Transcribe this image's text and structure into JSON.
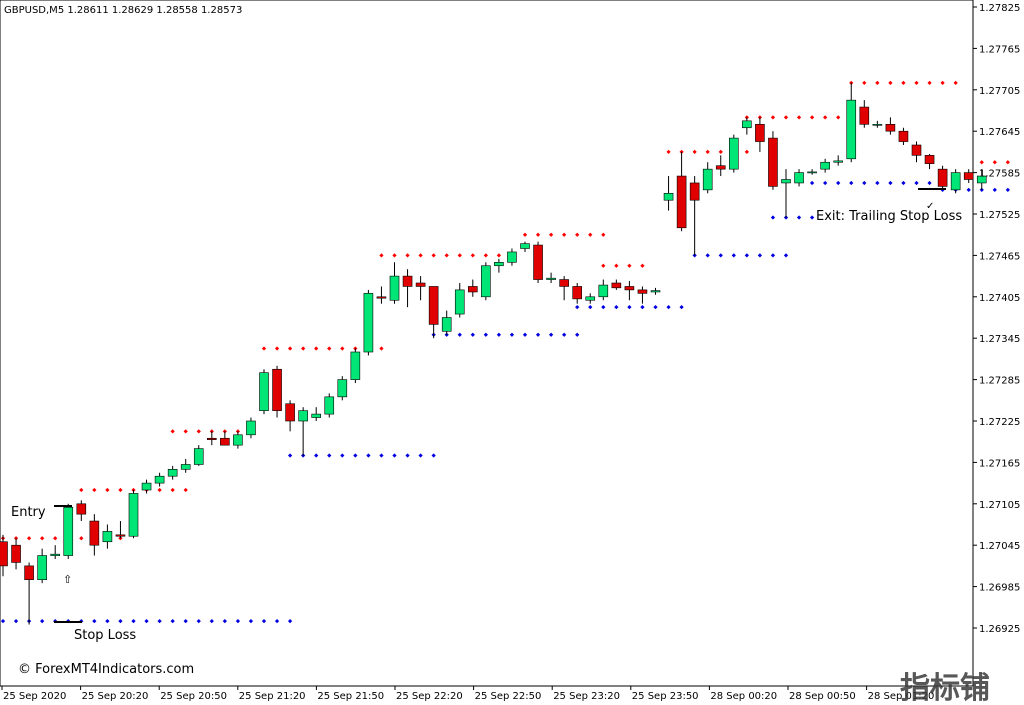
{
  "chart_data": {
    "type": "candlestick",
    "symbol_header": "GBPUSD,M5  1.28611 1.28629 1.28558 1.28573",
    "y_ticks": [
      "1.27825",
      "1.27765",
      "1.27705",
      "1.27645",
      "1.27585",
      "1.27525",
      "1.27465",
      "1.27405",
      "1.27345",
      "1.27285",
      "1.27225",
      "1.27165",
      "1.27105",
      "1.27045",
      "1.26985",
      "1.26925"
    ],
    "ylim": [
      1.2688,
      1.2785
    ],
    "x_ticks": [
      "25 Sep 2020",
      "25 Sep 20:20",
      "25 Sep 20:50",
      "25 Sep 21:20",
      "25 Sep 21:50",
      "25 Sep 22:20",
      "25 Sep 22:50",
      "25 Sep 23:20",
      "25 Sep 23:50",
      "28 Sep 00:20",
      "28 Sep 00:50",
      "28 Sep 01:20"
    ],
    "annotations": {
      "entry": "Entry",
      "stop_loss": "Stop Loss",
      "exit": "Exit: Trailing Stop Loss",
      "copyright": "© ForexMT4Indicators.com"
    },
    "watermark": "指标铺",
    "colors": {
      "bull": "#00e676",
      "bear": "#e00000",
      "upper_dots": "#ff0000",
      "lower_dots": "#0000e0",
      "wick": "#000000"
    },
    "candles": [
      {
        "o": 1.2705,
        "h": 1.2706,
        "l": 1.27,
        "c": 1.27015
      },
      {
        "o": 1.27045,
        "h": 1.27055,
        "l": 1.2701,
        "c": 1.2702
      },
      {
        "o": 1.27015,
        "h": 1.2702,
        "l": 1.2693,
        "c": 1.26995
      },
      {
        "o": 1.26995,
        "h": 1.2704,
        "l": 1.2699,
        "c": 1.2703
      },
      {
        "o": 1.2703,
        "h": 1.27045,
        "l": 1.27025,
        "c": 1.27032
      },
      {
        "o": 1.2703,
        "h": 1.27105,
        "l": 1.27025,
        "c": 1.271
      },
      {
        "o": 1.27105,
        "h": 1.2711,
        "l": 1.2708,
        "c": 1.2709
      },
      {
        "o": 1.2708,
        "h": 1.2709,
        "l": 1.2703,
        "c": 1.27045
      },
      {
        "o": 1.2705,
        "h": 1.27075,
        "l": 1.2704,
        "c": 1.27065
      },
      {
        "o": 1.2706,
        "h": 1.2708,
        "l": 1.27055,
        "c": 1.27058
      },
      {
        "o": 1.27058,
        "h": 1.27125,
        "l": 1.27055,
        "c": 1.2712
      },
      {
        "o": 1.27125,
        "h": 1.2714,
        "l": 1.2712,
        "c": 1.27135
      },
      {
        "o": 1.27135,
        "h": 1.2715,
        "l": 1.2713,
        "c": 1.27145
      },
      {
        "o": 1.27145,
        "h": 1.2716,
        "l": 1.2714,
        "c": 1.27155
      },
      {
        "o": 1.27155,
        "h": 1.2717,
        "l": 1.2715,
        "c": 1.27162
      },
      {
        "o": 1.27162,
        "h": 1.2719,
        "l": 1.2716,
        "c": 1.27185
      },
      {
        "o": 1.272,
        "h": 1.2721,
        "l": 1.2719,
        "c": 1.27198
      },
      {
        "o": 1.272,
        "h": 1.2721,
        "l": 1.2719,
        "c": 1.2719
      },
      {
        "o": 1.2719,
        "h": 1.2721,
        "l": 1.27185,
        "c": 1.27205
      },
      {
        "o": 1.27205,
        "h": 1.2723,
        "l": 1.272,
        "c": 1.27225
      },
      {
        "o": 1.2724,
        "h": 1.273,
        "l": 1.27235,
        "c": 1.27295
      },
      {
        "o": 1.273,
        "h": 1.27305,
        "l": 1.2723,
        "c": 1.2724
      },
      {
        "o": 1.2725,
        "h": 1.27255,
        "l": 1.2721,
        "c": 1.27225
      },
      {
        "o": 1.27225,
        "h": 1.27245,
        "l": 1.27175,
        "c": 1.2724
      },
      {
        "o": 1.2723,
        "h": 1.27245,
        "l": 1.27225,
        "c": 1.27235
      },
      {
        "o": 1.27235,
        "h": 1.27265,
        "l": 1.2723,
        "c": 1.2726
      },
      {
        "o": 1.2726,
        "h": 1.2729,
        "l": 1.27255,
        "c": 1.27285
      },
      {
        "o": 1.27285,
        "h": 1.2733,
        "l": 1.2728,
        "c": 1.27325
      },
      {
        "o": 1.27325,
        "h": 1.27415,
        "l": 1.2732,
        "c": 1.2741
      },
      {
        "o": 1.27405,
        "h": 1.2742,
        "l": 1.27395,
        "c": 1.27403
      },
      {
        "o": 1.274,
        "h": 1.27455,
        "l": 1.27395,
        "c": 1.27435
      },
      {
        "o": 1.27435,
        "h": 1.27445,
        "l": 1.2739,
        "c": 1.2742
      },
      {
        "o": 1.27425,
        "h": 1.27435,
        "l": 1.274,
        "c": 1.2742
      },
      {
        "o": 1.2742,
        "h": 1.2742,
        "l": 1.27345,
        "c": 1.27365
      },
      {
        "o": 1.27355,
        "h": 1.27385,
        "l": 1.2735,
        "c": 1.27375
      },
      {
        "o": 1.2738,
        "h": 1.27425,
        "l": 1.27375,
        "c": 1.27415
      },
      {
        "o": 1.2742,
        "h": 1.2743,
        "l": 1.27405,
        "c": 1.27412
      },
      {
        "o": 1.27405,
        "h": 1.27455,
        "l": 1.274,
        "c": 1.2745
      },
      {
        "o": 1.2745,
        "h": 1.2746,
        "l": 1.2744,
        "c": 1.27455
      },
      {
        "o": 1.27455,
        "h": 1.27475,
        "l": 1.2745,
        "c": 1.2747
      },
      {
        "o": 1.27475,
        "h": 1.27485,
        "l": 1.2747,
        "c": 1.27482
      },
      {
        "o": 1.2748,
        "h": 1.27485,
        "l": 1.27425,
        "c": 1.2743
      },
      {
        "o": 1.2743,
        "h": 1.2744,
        "l": 1.27425,
        "c": 1.27432
      },
      {
        "o": 1.2743,
        "h": 1.27435,
        "l": 1.274,
        "c": 1.2742
      },
      {
        "o": 1.2742,
        "h": 1.27425,
        "l": 1.27395,
        "c": 1.27402
      },
      {
        "o": 1.274,
        "h": 1.2741,
        "l": 1.27395,
        "c": 1.27405
      },
      {
        "o": 1.27405,
        "h": 1.2743,
        "l": 1.274,
        "c": 1.27422
      },
      {
        "o": 1.27425,
        "h": 1.2743,
        "l": 1.27415,
        "c": 1.27418
      },
      {
        "o": 1.2742,
        "h": 1.27428,
        "l": 1.274,
        "c": 1.27415
      },
      {
        "o": 1.27415,
        "h": 1.2742,
        "l": 1.27395,
        "c": 1.2741
      },
      {
        "o": 1.27412,
        "h": 1.27418,
        "l": 1.27408,
        "c": 1.27414
      },
      {
        "o": 1.27545,
        "h": 1.2758,
        "l": 1.2753,
        "c": 1.27555
      },
      {
        "o": 1.2758,
        "h": 1.27615,
        "l": 1.275,
        "c": 1.27505
      },
      {
        "o": 1.2757,
        "h": 1.2758,
        "l": 1.27465,
        "c": 1.27545
      },
      {
        "o": 1.2756,
        "h": 1.276,
        "l": 1.27555,
        "c": 1.2759
      },
      {
        "o": 1.27595,
        "h": 1.2761,
        "l": 1.2758,
        "c": 1.2759
      },
      {
        "o": 1.2759,
        "h": 1.2764,
        "l": 1.27585,
        "c": 1.27635
      },
      {
        "o": 1.2765,
        "h": 1.27665,
        "l": 1.2764,
        "c": 1.2766
      },
      {
        "o": 1.27655,
        "h": 1.27665,
        "l": 1.27615,
        "c": 1.2763
      },
      {
        "o": 1.27635,
        "h": 1.27645,
        "l": 1.2756,
        "c": 1.27565
      },
      {
        "o": 1.2757,
        "h": 1.2759,
        "l": 1.2752,
        "c": 1.27575
      },
      {
        "o": 1.2757,
        "h": 1.2759,
        "l": 1.27565,
        "c": 1.27585
      },
      {
        "o": 1.27585,
        "h": 1.2759,
        "l": 1.27582,
        "c": 1.27586
      },
      {
        "o": 1.2759,
        "h": 1.27605,
        "l": 1.27585,
        "c": 1.276
      },
      {
        "o": 1.276,
        "h": 1.2761,
        "l": 1.27595,
        "c": 1.27602
      },
      {
        "o": 1.27605,
        "h": 1.27715,
        "l": 1.276,
        "c": 1.2769
      },
      {
        "o": 1.2768,
        "h": 1.2769,
        "l": 1.2765,
        "c": 1.27655
      },
      {
        "o": 1.27655,
        "h": 1.2766,
        "l": 1.2765,
        "c": 1.27655
      },
      {
        "o": 1.27655,
        "h": 1.27665,
        "l": 1.2764,
        "c": 1.27645
      },
      {
        "o": 1.27645,
        "h": 1.2765,
        "l": 1.27625,
        "c": 1.2763
      },
      {
        "o": 1.27625,
        "h": 1.2763,
        "l": 1.276,
        "c": 1.2761
      },
      {
        "o": 1.2761,
        "h": 1.27612,
        "l": 1.2759,
        "c": 1.27598
      },
      {
        "o": 1.2759,
        "h": 1.27595,
        "l": 1.2756,
        "c": 1.27565
      },
      {
        "o": 1.2756,
        "h": 1.2759,
        "l": 1.27555,
        "c": 1.27585
      },
      {
        "o": 1.27585,
        "h": 1.2759,
        "l": 1.2757,
        "c": 1.27575
      },
      {
        "o": 1.2757,
        "h": 1.2759,
        "l": 1.2756,
        "c": 1.2758
      }
    ],
    "upper_dots": [
      {
        "x0": 0,
        "x1": 9,
        "y": 1.27055
      },
      {
        "x0": 6,
        "x1": 14,
        "y": 1.27125
      },
      {
        "x0": 13,
        "x1": 18,
        "y": 1.2721
      },
      {
        "x0": 20,
        "x1": 29,
        "y": 1.2733
      },
      {
        "x0": 29,
        "x1": 39,
        "y": 1.27465
      },
      {
        "x0": 40,
        "x1": 46,
        "y": 1.27495
      },
      {
        "x0": 46,
        "x1": 49,
        "y": 1.2745
      },
      {
        "x0": 51,
        "x1": 57,
        "y": 1.27615
      },
      {
        "x0": 57,
        "x1": 64,
        "y": 1.27665
      },
      {
        "x0": 65,
        "x1": 73,
        "y": 1.27715
      },
      {
        "x0": 75,
        "x1": 77,
        "y": 1.276
      }
    ],
    "lower_dots": [
      {
        "x0": 0,
        "x1": 22,
        "y": 1.26935
      },
      {
        "x0": 22,
        "x1": 33,
        "y": 1.27175
      },
      {
        "x0": 33,
        "x1": 44,
        "y": 1.2735
      },
      {
        "x0": 44,
        "x1": 52,
        "y": 1.2739
      },
      {
        "x0": 53,
        "x1": 60,
        "y": 1.27465
      },
      {
        "x0": 59,
        "x1": 62,
        "y": 1.2752
      },
      {
        "x0": 62,
        "x1": 72,
        "y": 1.2757
      },
      {
        "x0": 72,
        "x1": 77,
        "y": 1.2756
      }
    ]
  }
}
